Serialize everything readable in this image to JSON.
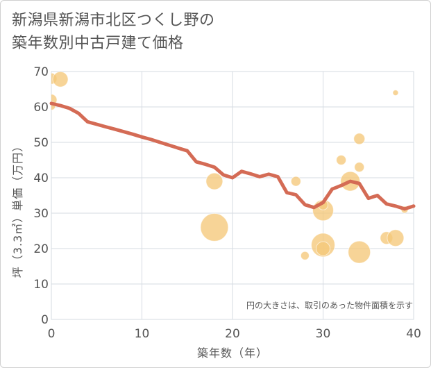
{
  "header": {
    "title_line1": "新潟県新潟市北区つくし野の",
    "title_line2": "築年数別中古戸建て価格"
  },
  "chart_data": {
    "type": "scatter",
    "title": "新潟県新潟市北区つくし野の築年数別中古戸建て価格",
    "xlabel": "築年数（年）",
    "ylabel": "坪（3.3㎡）単価（万円）",
    "note": "円の大きさは、取引のあった物件面積を示す",
    "xlim": [
      0,
      40
    ],
    "ylim": [
      0,
      70
    ],
    "x_ticks": [
      0,
      10,
      20,
      30,
      40
    ],
    "y_ticks": [
      0,
      10,
      20,
      30,
      40,
      50,
      60,
      70
    ],
    "grid": true,
    "bubble_color": "#f5c87a",
    "line_color": "#d46b55",
    "scatter_series": {
      "points": [
        {
          "x": 0,
          "y": 68,
          "size": 8
        },
        {
          "x": 1,
          "y": 67.8,
          "size": 11
        },
        {
          "x": 0,
          "y": 62,
          "size": 8
        },
        {
          "x": 0,
          "y": 60.3,
          "size": 6
        },
        {
          "x": 18,
          "y": 39,
          "size": 12
        },
        {
          "x": 18,
          "y": 26,
          "size": 20
        },
        {
          "x": 27,
          "y": 39,
          "size": 7
        },
        {
          "x": 28,
          "y": 18,
          "size": 6
        },
        {
          "x": 30,
          "y": 30.8,
          "size": 15
        },
        {
          "x": 30,
          "y": 32.3,
          "size": 7
        },
        {
          "x": 30,
          "y": 21,
          "size": 17
        },
        {
          "x": 30,
          "y": 20,
          "size": 10
        },
        {
          "x": 32,
          "y": 45,
          "size": 7
        },
        {
          "x": 33,
          "y": 39,
          "size": 14
        },
        {
          "x": 34,
          "y": 51,
          "size": 8
        },
        {
          "x": 34,
          "y": 43,
          "size": 7
        },
        {
          "x": 34,
          "y": 19,
          "size": 16
        },
        {
          "x": 37,
          "y": 23,
          "size": 9
        },
        {
          "x": 38,
          "y": 23,
          "size": 12
        },
        {
          "x": 38,
          "y": 64,
          "size": 4
        },
        {
          "x": 39,
          "y": 31,
          "size": 5
        }
      ]
    },
    "trend_series": {
      "x": [
        0,
        1,
        2,
        3,
        4,
        5,
        6,
        7,
        8,
        9,
        10,
        11,
        12,
        13,
        14,
        15,
        16,
        17,
        18,
        19,
        20,
        21,
        22,
        23,
        24,
        25,
        26,
        27,
        28,
        29,
        30,
        31,
        32,
        33,
        34,
        35,
        36,
        37,
        38,
        39,
        40
      ],
      "y": [
        61,
        60.4,
        59.6,
        58.2,
        55.8,
        55.1,
        54.4,
        53.7,
        53,
        52.3,
        51.5,
        50.8,
        50,
        49.2,
        48.4,
        47.6,
        44.5,
        43.8,
        43,
        40.8,
        40,
        41.8,
        41.1,
        40.3,
        41,
        40.3,
        35.8,
        35.2,
        32.4,
        31.6,
        33,
        36.8,
        37.8,
        39,
        38.4,
        34.2,
        35,
        32.6,
        32,
        31.2,
        32
      ]
    }
  }
}
